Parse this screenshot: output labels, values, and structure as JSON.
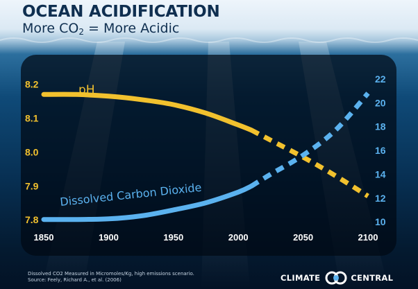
{
  "title": "OCEAN ACIDIFICATION",
  "subtitle_prefix": "More CO",
  "subtitle_sub": "2",
  "subtitle_suffix": " = More Acidic",
  "footer_line1": "Dissolved CO2 Measured in Micromoles/Kg, high emissions scenario.",
  "footer_line2": "Source: Feely, Richard A., et al. (2006)",
  "logo_left": "CLIMATE",
  "logo_right": "CENTRAL",
  "colors": {
    "ph": "#f2c12e",
    "co2": "#5bb2ef",
    "panel": "#000814",
    "title": "#0f2f50"
  },
  "chart_data": {
    "type": "line",
    "x": [
      1850,
      1900,
      1950,
      2000,
      2050,
      2100
    ],
    "xlim": [
      1850,
      2100
    ],
    "xticks": [
      "1850",
      "1900",
      "1950",
      "2000",
      "2050",
      "2100"
    ],
    "y_left": {
      "lim": [
        7.78,
        8.23
      ],
      "ticks": [
        "8.2",
        "8.1",
        "8.0",
        "7.9",
        "7.8"
      ]
    },
    "y_right": {
      "lim": [
        9.6,
        22.4
      ],
      "ticks": [
        "22",
        "20",
        "18",
        "16",
        "14",
        "12",
        "10"
      ]
    },
    "grid": false,
    "series": [
      {
        "name": "pH",
        "axis": "left",
        "color": "#f2c12e",
        "points": [
          [
            1850,
            8.17
          ],
          [
            1875,
            8.17
          ],
          [
            1900,
            8.165
          ],
          [
            1925,
            8.155
          ],
          [
            1950,
            8.14
          ],
          [
            1975,
            8.115
          ],
          [
            2000,
            8.08
          ],
          [
            2010,
            8.065
          ],
          [
            2025,
            8.035
          ],
          [
            2050,
            7.985
          ],
          [
            2075,
            7.93
          ],
          [
            2100,
            7.87
          ]
        ],
        "solid_until": 2010
      },
      {
        "name": "Dissolved Carbon Dioxide",
        "axis": "right",
        "color": "#5bb2ef",
        "points": [
          [
            1850,
            10.2
          ],
          [
            1875,
            10.2
          ],
          [
            1900,
            10.25
          ],
          [
            1925,
            10.5
          ],
          [
            1950,
            11.0
          ],
          [
            1975,
            11.6
          ],
          [
            2000,
            12.5
          ],
          [
            2010,
            13.0
          ],
          [
            2025,
            14.0
          ],
          [
            2050,
            15.6
          ],
          [
            2075,
            17.7
          ],
          [
            2100,
            20.8
          ]
        ],
        "solid_until": 2010
      }
    ]
  }
}
